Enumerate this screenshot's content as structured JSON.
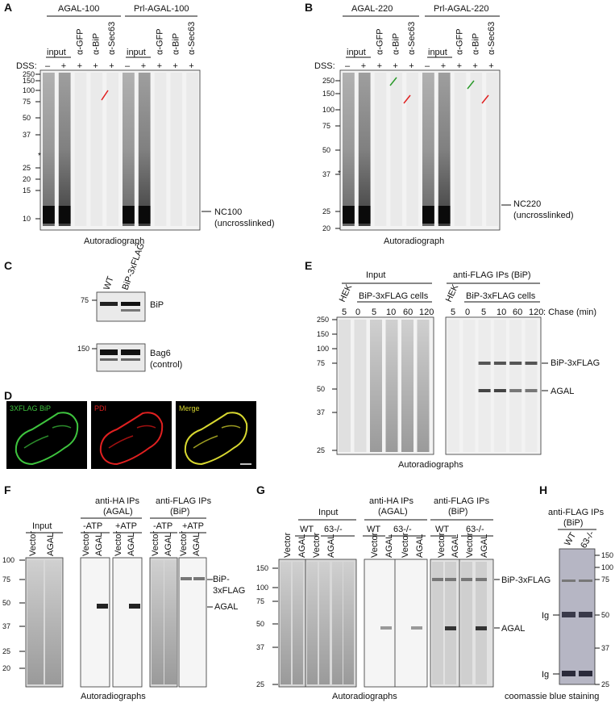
{
  "panelA": {
    "letter": "A",
    "groups": [
      "AGAL-100",
      "Prl-AGAL-100"
    ],
    "input_label": "input",
    "lanes": [
      "α-GFP",
      "α-BiP",
      "α-Sec63"
    ],
    "dss_label": "DSS:",
    "signs": [
      "–",
      "+",
      "+",
      "+",
      "+"
    ],
    "mw": [
      "250",
      "150",
      "100",
      "75",
      "50",
      "37",
      "25",
      "20",
      "15",
      "10"
    ],
    "band_label": "NC100",
    "band_note": "(uncrosslinked)",
    "star": "*",
    "caption": "Autoradiograph"
  },
  "panelB": {
    "letter": "B",
    "groups": [
      "AGAL-220",
      "Prl-AGAL-220"
    ],
    "input_label": "input",
    "lanes": [
      "α-GFP",
      "α-BiP",
      "α-Sec63"
    ],
    "dss_label": "DSS:",
    "signs": [
      "–",
      "+",
      "+",
      "+",
      "+"
    ],
    "mw": [
      "250",
      "150",
      "100",
      "75",
      "50",
      "37",
      "25",
      "20"
    ],
    "band_label": "NC220",
    "band_note": "(uncrosslinked)",
    "star": "*",
    "caption": "Autoradiograph"
  },
  "panelC": {
    "letter": "C",
    "lanes": [
      "WT",
      "BiP-3xFLAG"
    ],
    "mw": [
      "75",
      "150"
    ],
    "labels": [
      "BiP",
      "Bag6",
      "(control)"
    ]
  },
  "panelD": {
    "letter": "D",
    "images": [
      "3XFLAG BiP",
      "PDI",
      "Merge"
    ],
    "colors": {
      "green": "#3ec43e",
      "red": "#e02020",
      "yellow": "#d8d830"
    }
  },
  "panelE": {
    "letter": "E",
    "groups": [
      "Input",
      "anti-FLAG IPs (BiP)"
    ],
    "hek": "HEK",
    "cells": "BiP-3xFLAG cells",
    "times": [
      "5",
      "0",
      "5",
      "10",
      "60",
      "120"
    ],
    "chase": ": Chase (min)",
    "mw": [
      "250",
      "150",
      "100",
      "75",
      "50",
      "37",
      "25"
    ],
    "labels": [
      "BiP-3xFLAG",
      "AGAL"
    ],
    "caption": "Autoradiographs"
  },
  "panelF": {
    "letter": "F",
    "input": "Input",
    "ha": [
      "anti-HA IPs",
      "(AGAL)"
    ],
    "flag": [
      "anti-FLAG IPs",
      "(BiP)"
    ],
    "atp": [
      "-ATP",
      "+ATP",
      "-ATP",
      "+ATP"
    ],
    "lanes": [
      "Vector",
      "AGAL"
    ],
    "mw": [
      "100",
      "75",
      "50",
      "37",
      "25",
      "20"
    ],
    "labels": [
      "BiP-",
      "3xFLAG",
      "AGAL"
    ],
    "caption": "Autoradiographs"
  },
  "panelG": {
    "letter": "G",
    "input": "Input",
    "ha": [
      "anti-HA IPs",
      "(AGAL)"
    ],
    "flag": [
      "anti-FLAG IPs",
      "(BiP)"
    ],
    "geno": [
      "WT",
      "63-/-"
    ],
    "lanes": [
      "Vector",
      "AGAL"
    ],
    "mw": [
      "150",
      "100",
      "75",
      "50",
      "37",
      "25"
    ],
    "labels": [
      "BiP-3xFLAG",
      "AGAL"
    ],
    "caption": "Autoradiographs"
  },
  "panelH": {
    "letter": "H",
    "title": [
      "anti-FLAG IPs",
      "(BiP)"
    ],
    "lanes": [
      "WT",
      "63-/-"
    ],
    "mw": [
      "150",
      "100",
      "75",
      "50",
      "37",
      "25"
    ],
    "ig": "Ig",
    "caption": "coomassie blue staining"
  }
}
